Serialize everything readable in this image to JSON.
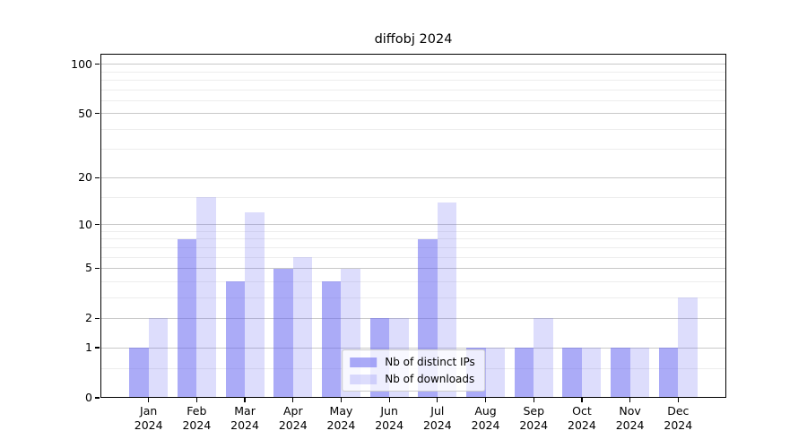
{
  "chart_data": {
    "type": "bar",
    "title": "diffobj 2024",
    "xlabel": "",
    "ylabel": "",
    "categories": [
      "Jan 2024",
      "Feb 2024",
      "Mar 2024",
      "Apr 2024",
      "May 2024",
      "Jun 2024",
      "Jul 2024",
      "Aug 2024",
      "Sep 2024",
      "Oct 2024",
      "Nov 2024",
      "Dec 2024"
    ],
    "series": [
      {
        "name": "Nb of distinct IPs",
        "color": "rgba(102,102,240,0.55)",
        "values": [
          1,
          8,
          4,
          5,
          4,
          2,
          8,
          1,
          1,
          1,
          1,
          1
        ]
      },
      {
        "name": "Nb of downloads",
        "color": "rgba(102,102,240,0.22)",
        "values": [
          2,
          15,
          12,
          6,
          5,
          2,
          14,
          1,
          2,
          1,
          1,
          3
        ]
      }
    ],
    "yscale": "log1p",
    "ylim": [
      0,
      115
    ],
    "y_ticks_major": [
      0,
      1,
      2,
      5,
      10,
      20,
      50,
      100
    ],
    "y_ticks_minor": [
      0.5,
      3,
      4,
      6,
      7,
      8,
      9,
      15,
      30,
      40,
      60,
      70,
      80,
      90
    ],
    "grid": true,
    "legend_position": "lower center"
  },
  "colors": {
    "major_grid": "#c8c8c8",
    "minor_grid": "#ededed",
    "axis_frame": "#000000"
  }
}
